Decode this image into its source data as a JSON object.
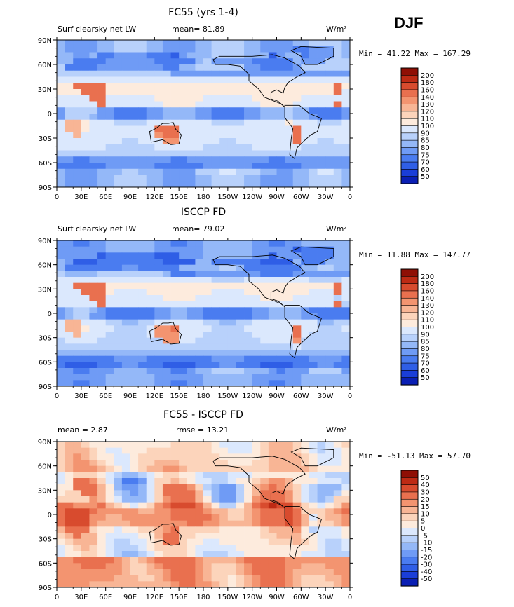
{
  "season": "DJF",
  "colors": {
    "abs_levels": [
      "#000078",
      "#0a1fb4",
      "#1a3ed8",
      "#2f5ee6",
      "#4a7cf0",
      "#6f9bf5",
      "#94b8f8",
      "#b8d1fb",
      "#dbe8fd",
      "#fdebdd",
      "#fcd4bb",
      "#f8b595",
      "#f39470",
      "#e9704f",
      "#d84b2e",
      "#bd2a14",
      "#8f0f05"
    ],
    "diff_levels": [
      "#000078",
      "#0a1fb4",
      "#1a3ed8",
      "#2f5ee6",
      "#4a7cf0",
      "#6f9bf5",
      "#94b8f8",
      "#b8d1fb",
      "#dbe8fd",
      "#fdebdd",
      "#fcd4bb",
      "#f8b595",
      "#f39470",
      "#e9704f",
      "#d84b2e",
      "#bd2a14",
      "#8f0f05"
    ]
  },
  "chart_data": [
    {
      "type": "heatmap",
      "title": "FC55 (yrs 1-4)",
      "left_label": "Surf clearsky net LW",
      "stat1": "mean=  81.89",
      "stat2": "",
      "units": "W/m²",
      "minmax": "Min =  41.22 Max = 167.29",
      "x_ticks": [
        "0",
        "30E",
        "60E",
        "90E",
        "120E",
        "150E",
        "180",
        "150W",
        "120W",
        "90W",
        "60W",
        "30W",
        "0"
      ],
      "y_ticks": [
        "90N",
        "60N",
        "30N",
        "0",
        "30S",
        "60S",
        "90S"
      ],
      "colorbar_labels": [
        "200",
        "180",
        "160",
        "140",
        "130",
        "120",
        "110",
        "100",
        "90",
        "85",
        "80",
        "75",
        "70",
        "60",
        "50"
      ],
      "field": "model"
    },
    {
      "type": "heatmap",
      "title": "ISCCP FD",
      "left_label": "Surf clearsky net LW",
      "stat1": "mean=  79.02",
      "stat2": "",
      "units": "W/m²",
      "minmax": "Min =  11.88 Max = 147.77",
      "x_ticks": [
        "0",
        "30E",
        "60E",
        "90E",
        "120E",
        "150E",
        "180",
        "150W",
        "120W",
        "90W",
        "60W",
        "30W",
        "0"
      ],
      "y_ticks": [
        "90N",
        "60N",
        "30N",
        "0",
        "30S",
        "60S",
        "90S"
      ],
      "colorbar_labels": [
        "200",
        "180",
        "160",
        "140",
        "130",
        "120",
        "110",
        "100",
        "90",
        "85",
        "80",
        "75",
        "70",
        "60",
        "50"
      ],
      "field": "obs"
    },
    {
      "type": "heatmap",
      "title": "FC55 - ISCCP FD",
      "left_label": "mean =   2.87",
      "stat1": "",
      "stat2": "rmse =  13.21",
      "units": "W/m²",
      "minmax": "Min = -51.13 Max =  57.70",
      "x_ticks": [
        "0",
        "30E",
        "60E",
        "90E",
        "120E",
        "150E",
        "180",
        "150W",
        "120W",
        "90W",
        "60W",
        "30W",
        "0"
      ],
      "y_ticks": [
        "90N",
        "60N",
        "30N",
        "0",
        "30S",
        "60S",
        "90S"
      ],
      "colorbar_labels": [
        "50",
        "40",
        "30",
        "20",
        "15",
        "10",
        "5",
        "0",
        "-5",
        "-10",
        "-15",
        "-20",
        "-30",
        "-40",
        "-50"
      ],
      "field": "diff"
    }
  ]
}
